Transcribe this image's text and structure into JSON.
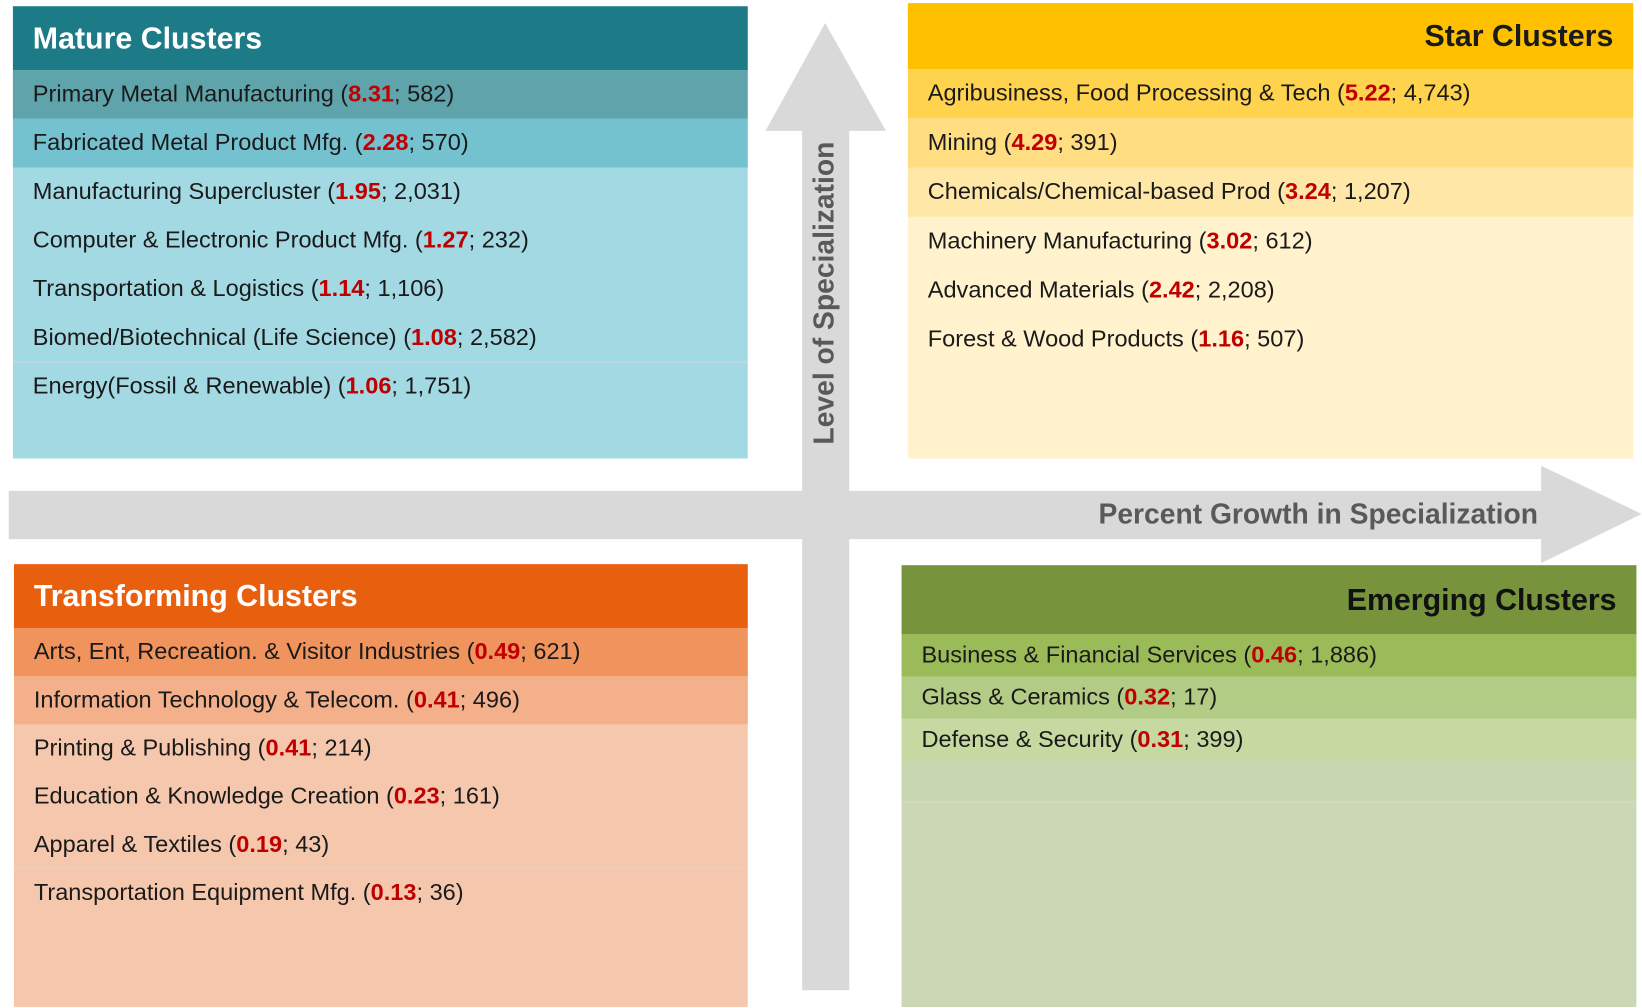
{
  "axes": {
    "vertical": "Level of Specialization",
    "horizontal": "Percent Growth in Specialization"
  },
  "quadrants": [
    {
      "title": "Mature Clusters",
      "items": [
        {
          "text": "Primary Metal Manufacturing (",
          "highlight": "8.31",
          "rest": "; 582)"
        },
        {
          "text": "Fabricated Metal Product Mfg. (",
          "highlight": "2.28",
          "rest": "; 570)"
        },
        {
          "text": "Manufacturing Supercluster (",
          "highlight": "1.95",
          "rest": "; 2,031)"
        },
        {
          "text": "Computer & Electronic Product Mfg. (",
          "highlight": "1.27",
          "rest": "; 232)"
        },
        {
          "text": "Transportation & Logistics (",
          "highlight": "1.14",
          "rest": "; 1,106)"
        },
        {
          "text": "Biomed/Biotechnical (Life Science) (",
          "highlight": "1.08",
          "rest": "; 2,582)"
        },
        {
          "text": "Energy(Fossil & Renewable) (",
          "highlight": "1.06",
          "rest": "; 1,751)"
        }
      ]
    },
    {
      "title": "Star Clusters",
      "items": [
        {
          "text": "Agribusiness, Food Processing & Tech (",
          "highlight": "5.22",
          "rest": "; 4,743)"
        },
        {
          "text": "Mining (",
          "highlight": "4.29",
          "rest": "; 391)"
        },
        {
          "text": "Chemicals/Chemical-based Prod (",
          "highlight": "3.24",
          "rest": "; 1,207)"
        },
        {
          "text": "Machinery Manufacturing (",
          "highlight": "3.02",
          "rest": "; 612)"
        },
        {
          "text": "Advanced Materials (",
          "highlight": "2.42",
          "rest": "; 2,208)"
        },
        {
          "text": "Forest & Wood Products (",
          "highlight": "1.16",
          "rest": "; 507)"
        }
      ]
    },
    {
      "title": "Transforming Clusters",
      "items": [
        {
          "text": "Arts, Ent, Recreation. & Visitor Industries (",
          "highlight": "0.49",
          "rest": "; 621)"
        },
        {
          "text": "Information Technology & Telecom. (",
          "highlight": "0.41",
          "rest": "; 496)"
        },
        {
          "text": "Printing & Publishing (",
          "highlight": "0.41",
          "rest": "; 214)"
        },
        {
          "text": "Education & Knowledge Creation (",
          "highlight": "0.23",
          "rest": "; 161)"
        },
        {
          "text": "Apparel & Textiles (",
          "highlight": "0.19",
          "rest": "; 43)"
        },
        {
          "text": "Transportation Equipment Mfg. (",
          "highlight": "0.13",
          "rest": "; 36)"
        }
      ]
    },
    {
      "title": "Emerging Clusters",
      "items": [
        {
          "text": "Business & Financial Services (",
          "highlight": "0.46",
          "rest": "; 1,886)"
        },
        {
          "text": "Glass & Ceramics (",
          "highlight": "0.32",
          "rest": "; 17)"
        },
        {
          "text": "Defense & Security (",
          "highlight": "0.31",
          "rest": "; 399)"
        }
      ]
    }
  ]
}
